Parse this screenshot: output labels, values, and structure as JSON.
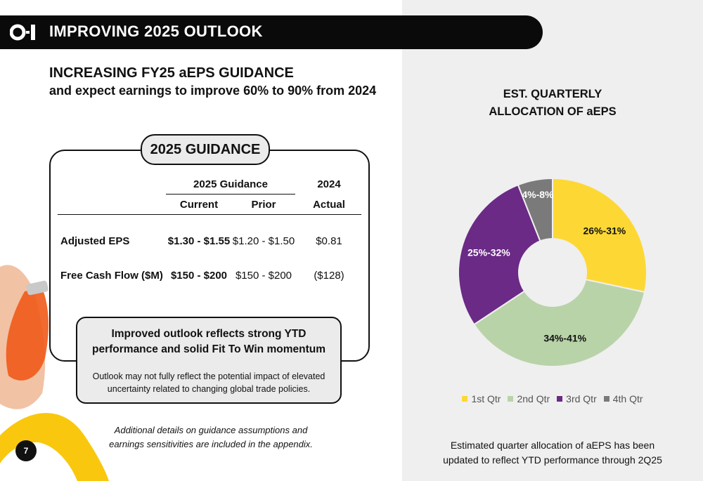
{
  "header": {
    "title": "IMPROVING 2025 OUTLOOK"
  },
  "headline": {
    "line1": "INCREASING FY25 aEPS GUIDANCE",
    "line2": "and expect earnings to improve 60% to 90% from 2024"
  },
  "guidance": {
    "badge": "2025 GUIDANCE",
    "group_header": "2025 Guidance",
    "year_header": "2024",
    "columns": [
      "Current",
      "Prior",
      "Actual"
    ],
    "rows": [
      {
        "label": "Adjusted EPS",
        "current": "$1.30 - $1.55",
        "prior": "$1.20 - $1.50",
        "actual": "$0.81"
      },
      {
        "label": "Free Cash Flow ($M)",
        "current": "$150 - $200",
        "prior": "$150 - $200",
        "actual": "($128)"
      }
    ]
  },
  "callout": {
    "title_line1": "Improved outlook reflects strong YTD",
    "title_line2": "performance and solid Fit To Win momentum",
    "body_line1": "Outlook may not fully reflect the potential impact of elevated",
    "body_line2": "uncertainty related to changing global trade policies."
  },
  "footnote_left": {
    "line1": "Additional details on guidance assumptions and",
    "line2": "earnings sensitivities are included in the appendix."
  },
  "page_number": "7",
  "footnote_right": {
    "line1": "Estimated quarter allocation of aEPS has been",
    "line2": "updated to reflect YTD performance through 2Q25"
  },
  "colors": {
    "q1": "#fdd835",
    "q2": "#b9d3a9",
    "q3": "#6a2a86",
    "q4": "#7a7a7a",
    "accent_yellow": "#f9c80e"
  },
  "chart_data": {
    "type": "pie",
    "donut": true,
    "title_line1": "EST. QUARTERLY",
    "title_line2": "ALLOCATION OF aEPS",
    "categories": [
      "1st Qtr",
      "2nd Qtr",
      "3rd Qtr",
      "4th Qtr"
    ],
    "labels": [
      "26%-31%",
      "34%-41%",
      "25%-32%",
      "4%-8%"
    ],
    "values": [
      28.5,
      37.5,
      28.5,
      6
    ],
    "legend_position": "bottom"
  }
}
